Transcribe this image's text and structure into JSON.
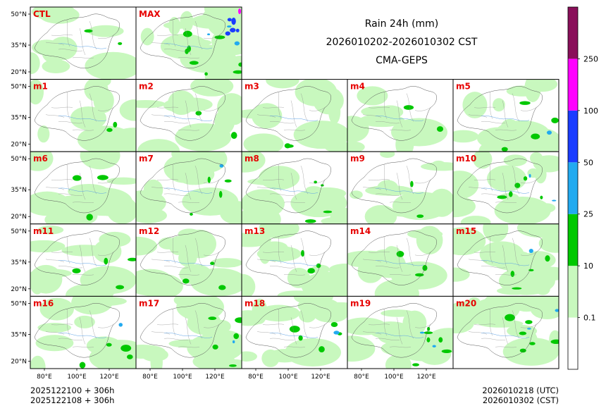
{
  "chart_data": {
    "type": "map-panel-grid",
    "title": "Rain 24h (mm)",
    "subtitle": "2026010202-2026010302 CST",
    "model": "CMA-GEPS",
    "panels": [
      {
        "label": "CTL",
        "intensity": 0.2
      },
      {
        "label": "MAX",
        "intensity": 0.95
      },
      {
        "label": "m1",
        "intensity": 0.3
      },
      {
        "label": "m2",
        "intensity": 0.25
      },
      {
        "label": "m3",
        "intensity": 0.3
      },
      {
        "label": "m4",
        "intensity": 0.3
      },
      {
        "label": "m5",
        "intensity": 0.55
      },
      {
        "label": "m6",
        "intensity": 0.4
      },
      {
        "label": "m7",
        "intensity": 0.55
      },
      {
        "label": "m8",
        "intensity": 0.5
      },
      {
        "label": "m9",
        "intensity": 0.25
      },
      {
        "label": "m10",
        "intensity": 0.65
      },
      {
        "label": "m11",
        "intensity": 0.45
      },
      {
        "label": "m12",
        "intensity": 0.4
      },
      {
        "label": "m13",
        "intensity": 0.4
      },
      {
        "label": "m14",
        "intensity": 0.35
      },
      {
        "label": "m15",
        "intensity": 0.55
      },
      {
        "label": "m16",
        "intensity": 0.55
      },
      {
        "label": "m17",
        "intensity": 0.6
      },
      {
        "label": "m18",
        "intensity": 0.6
      },
      {
        "label": "m19",
        "intensity": 0.7
      },
      {
        "label": "m20",
        "intensity": 0.75
      }
    ],
    "lat_ticks": [
      "50°N",
      "35°N",
      "20°N"
    ],
    "lon_ticks": [
      "80°E",
      "100°E",
      "120°E"
    ],
    "colorbar": {
      "levels": [
        "0.1",
        "10",
        "25",
        "50",
        "100",
        "250"
      ],
      "colors": [
        "#ffffff",
        "#c8f8be",
        "#00c800",
        "#22aaf0",
        "#1a3cff",
        "#ff00ff",
        "#8a0f5a"
      ]
    },
    "footer": {
      "left_line1": "2025122100 + 306h",
      "left_line2": "2025122108 + 306h",
      "right_line1": "2026010218 (UTC)",
      "right_line2": "2026010302 (CST)"
    }
  }
}
